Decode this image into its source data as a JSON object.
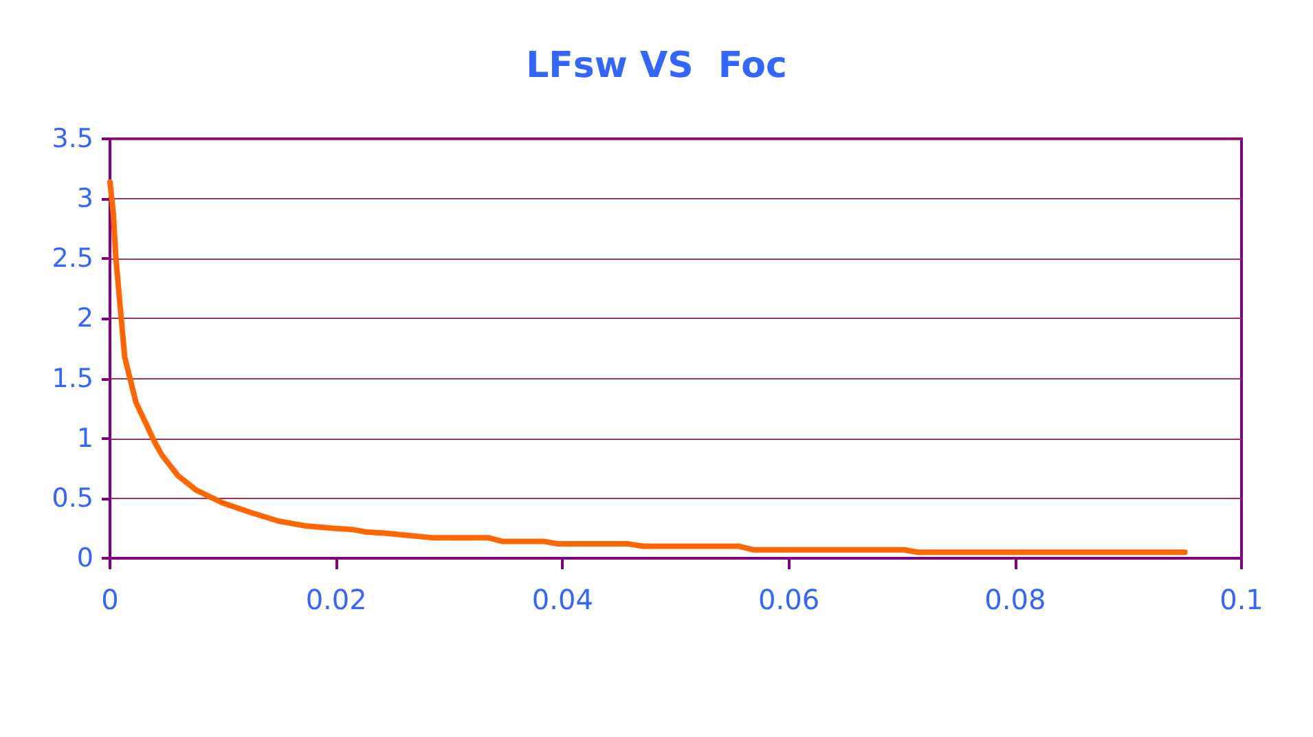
{
  "chart_data": {
    "type": "line",
    "title": "LFsw VS  Foc",
    "x": [
      0,
      0.0003,
      0.0005,
      0.0009,
      0.0013,
      0.0019,
      0.0023,
      0.004,
      0.0046,
      0.006,
      0.0076,
      0.01,
      0.0125,
      0.0149,
      0.0173,
      0.0198,
      0.0214,
      0.0226,
      0.0243,
      0.0275,
      0.0287,
      0.0335,
      0.0347,
      0.0384,
      0.0396,
      0.0458,
      0.0471,
      0.0556,
      0.0569,
      0.0702,
      0.0714,
      0.095
    ],
    "series": [
      {
        "color": "#ff6600",
        "values": [
          3.14,
          2.87,
          2.53,
          2.1,
          1.68,
          1.45,
          1.3,
          0.96,
          0.86,
          0.69,
          0.57,
          0.46,
          0.38,
          0.31,
          0.27,
          0.25,
          0.24,
          0.22,
          0.21,
          0.18,
          0.17,
          0.17,
          0.14,
          0.14,
          0.12,
          0.12,
          0.1,
          0.1,
          0.07,
          0.07,
          0.05,
          0.05
        ]
      }
    ],
    "xlim": [
      0,
      0.1
    ],
    "xticks": [
      0,
      0.02,
      0.04,
      0.06,
      0.08,
      0.1
    ],
    "ylim": [
      0,
      3.5
    ],
    "yticks": [
      0,
      0.5,
      1,
      1.5,
      2,
      2.5,
      3,
      3.5
    ],
    "grid": "y",
    "marker": "none",
    "line_style": "solid"
  }
}
